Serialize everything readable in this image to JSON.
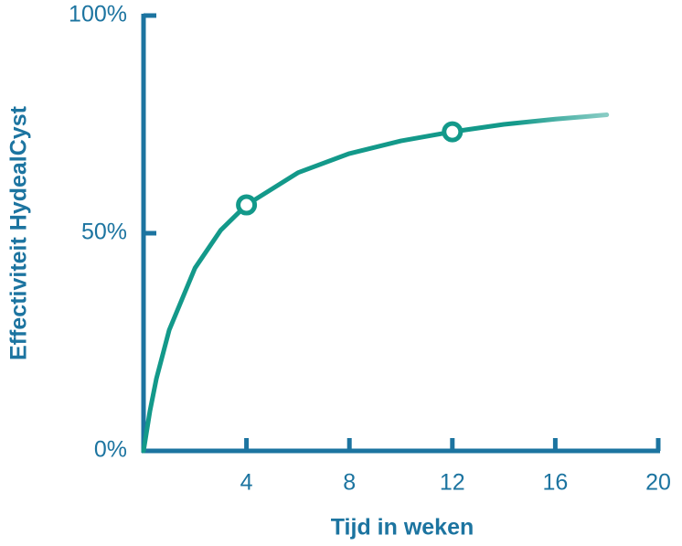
{
  "chart_data": {
    "type": "line",
    "x_label": "Tijd in weken",
    "y_label": "Effectiviteit HydealCyst",
    "xlim": [
      0,
      20
    ],
    "xticks": [
      4,
      8,
      12,
      16,
      20
    ],
    "ylim": [
      0,
      100
    ],
    "yticks": [
      {
        "value": 0,
        "label": "0%"
      },
      {
        "value": 50,
        "label": "50%"
      },
      {
        "value": 100,
        "label": "100%"
      }
    ],
    "axis_color": "#1c74a0",
    "series": [
      {
        "color": "#13998a",
        "x": [
          0,
          0.25,
          0.5,
          1,
          2,
          3,
          4,
          6,
          8,
          10,
          12,
          14,
          16,
          18
        ],
        "values": [
          0,
          9.2,
          16.6,
          27.8,
          42,
          50.7,
          56.5,
          63.9,
          68.3,
          71.2,
          73.3,
          75,
          76.2,
          77.2
        ]
      }
    ],
    "markers": {
      "x": [
        4,
        12
      ],
      "values": [
        56.5,
        73.3
      ]
    }
  }
}
